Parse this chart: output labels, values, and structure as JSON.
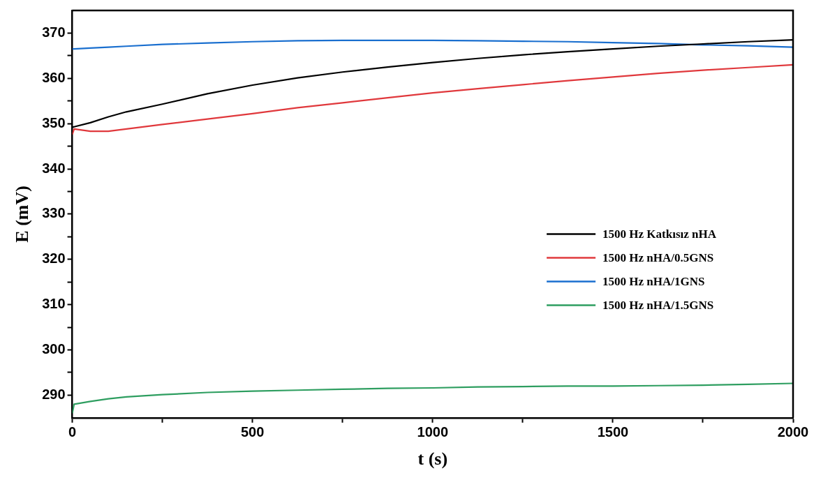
{
  "chart_data": {
    "type": "line",
    "xlabel": "t (s)",
    "ylabel": "E (mV)",
    "xlim": [
      0,
      2000
    ],
    "ylim": [
      285,
      375
    ],
    "xticks": [
      0,
      {
        "value": 250,
        "label": null
      },
      500,
      {
        "value": 750,
        "label": null
      },
      1000,
      {
        "value": 1250,
        "label": null
      },
      1500,
      {
        "value": 1750,
        "label": null
      },
      2000
    ],
    "yticks": [
      290,
      {
        "value": 295,
        "label": null
      },
      300,
      {
        "value": 305,
        "label": null
      },
      310,
      {
        "value": 315,
        "label": null
      },
      320,
      {
        "value": 325,
        "label": null
      },
      330,
      {
        "value": 335,
        "label": null
      },
      340,
      {
        "value": 345,
        "label": null
      },
      350,
      {
        "value": 355,
        "label": null
      },
      360,
      {
        "value": 365,
        "label": null
      },
      370
    ],
    "grid": false,
    "legend": "right",
    "marker": "none",
    "line_style": "solid",
    "x": [
      0,
      5,
      50,
      100,
      150,
      250,
      375,
      500,
      625,
      750,
      875,
      1000,
      1125,
      1250,
      1375,
      1500,
      1625,
      1750,
      1875,
      2000
    ],
    "series": [
      {
        "name": "1500 Hz Katkısız nHA",
        "color": "#000000",
        "values": [
          349.2,
          349.3,
          350.2,
          351.5,
          352.6,
          354.3,
          356.6,
          358.5,
          360.1,
          361.4,
          362.5,
          363.5,
          364.4,
          365.2,
          365.9,
          366.5,
          367.1,
          367.6,
          368.1,
          368.5
        ]
      },
      {
        "name": "1500 Hz nHA/0.5GNS",
        "color": "#e0383c",
        "values": [
          347.6,
          348.8,
          348.3,
          348.3,
          348.8,
          349.8,
          351.0,
          352.2,
          353.5,
          354.6,
          355.7,
          356.8,
          357.7,
          358.6,
          359.5,
          360.3,
          361.1,
          361.8,
          362.4,
          363.0
        ]
      },
      {
        "name": "1500 Hz nHA/1GNS",
        "color": "#1a6fcf",
        "values": [
          366.5,
          366.5,
          366.7,
          366.9,
          367.1,
          367.5,
          367.8,
          368.1,
          368.3,
          368.4,
          368.4,
          368.4,
          368.3,
          368.2,
          368.1,
          367.9,
          367.7,
          367.4,
          367.2,
          366.9
        ]
      },
      {
        "name": "1500 Hz nHA/1.5GNS",
        "color": "#2e9e60",
        "values": [
          286.0,
          288.0,
          288.6,
          289.2,
          289.6,
          290.1,
          290.6,
          290.9,
          291.1,
          291.3,
          291.5,
          291.6,
          291.8,
          291.9,
          292.0,
          292.0,
          292.1,
          292.2,
          292.4,
          292.6
        ]
      }
    ]
  }
}
